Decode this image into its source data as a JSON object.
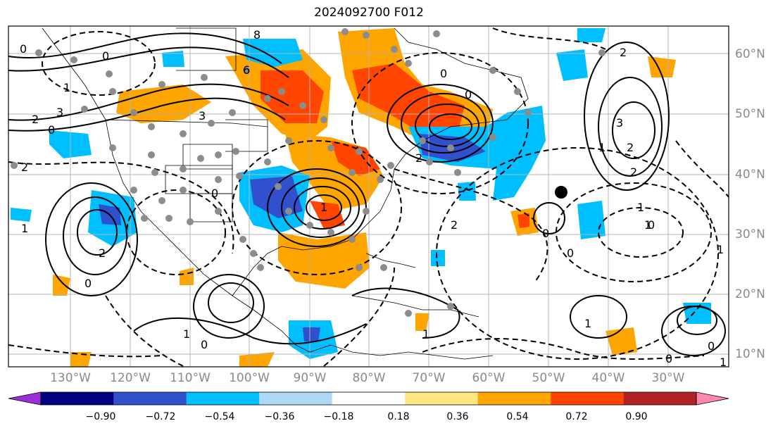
{
  "title": "2024092700 F012",
  "lat_labels": [
    "60°N",
    "50°N",
    "40°N",
    "30°N",
    "20°N",
    "10°N"
  ],
  "lon_labels": [
    "130°W",
    "120°W",
    "110°W",
    "100°W",
    "90°W",
    "80°W",
    "70°W",
    "60°W",
    "50°W",
    "40°W",
    "30°W"
  ],
  "colorbar": {
    "ticks": [
      "−0.90",
      "−0.72",
      "−0.54",
      "−0.36",
      "−0.18",
      "0.18",
      "0.36",
      "0.54",
      "0.72",
      "0.90"
    ],
    "colors": [
      "#9b30d9",
      "#000080",
      "#3150cd",
      "#00bfff",
      "#add8f6",
      "#ffffff",
      "#ffe680",
      "#ffa500",
      "#ff4500",
      "#b22222",
      "#ff88b0"
    ]
  },
  "contour_labels": [
    "0",
    "0",
    "1",
    "2",
    "3",
    "0",
    "2",
    "3",
    "8",
    "0",
    "6",
    "0",
    "2",
    "0",
    "2",
    "3",
    "1",
    "2",
    "1",
    "2",
    "0",
    "1",
    "1",
    "2",
    "0",
    "1",
    "0",
    "0",
    "2",
    "1",
    "1",
    "0",
    "0",
    "1",
    "0",
    "1",
    "1"
  ],
  "colors": {
    "shade_orange": "#ffa500",
    "shade_red": "#ff4500",
    "shade_blue": "#00bfff",
    "shade_darkblue": "#3150cd",
    "dot_gray": "#8c8c8c",
    "grid_gray": "#b4b4b4"
  }
}
